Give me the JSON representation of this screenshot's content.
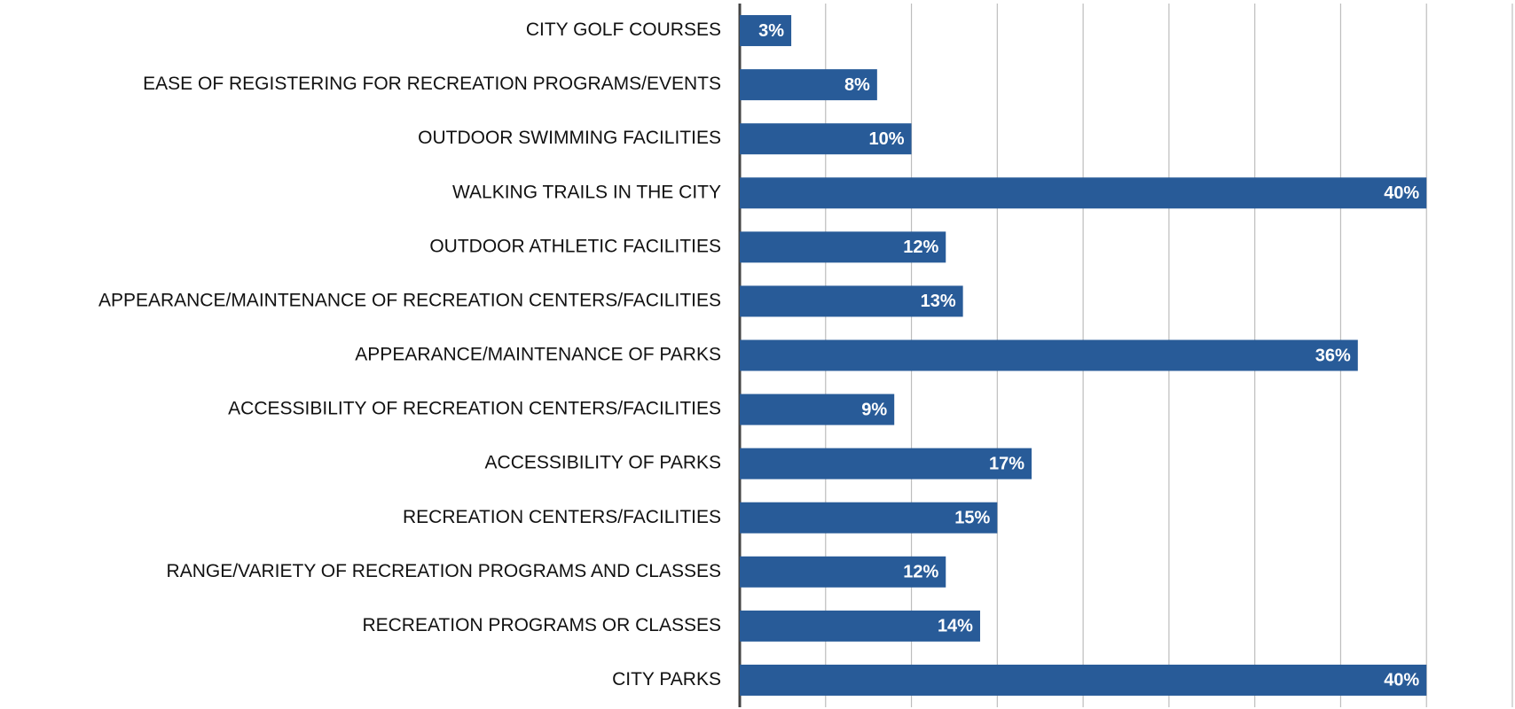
{
  "chart_data": {
    "type": "bar",
    "orientation": "horizontal",
    "categories": [
      "CITY GOLF COURSES",
      "EASE OF REGISTERING FOR RECREATION PROGRAMS/EVENTS",
      "OUTDOOR SWIMMING FACILITIES",
      "WALKING TRAILS IN THE CITY",
      "OUTDOOR ATHLETIC FACILITIES",
      "APPEARANCE/MAINTENANCE OF RECREATION CENTERS/FACILITIES",
      "APPEARANCE/MAINTENANCE OF PARKS",
      "ACCESSIBILITY OF RECREATION CENTERS/FACILITIES",
      "ACCESSIBILITY OF PARKS",
      "RECREATION CENTERS/FACILITIES",
      "RANGE/VARIETY OF RECREATION PROGRAMS AND CLASSES",
      "RECREATION PROGRAMS OR CLASSES",
      "CITY PARKS"
    ],
    "values": [
      3,
      8,
      10,
      40,
      12,
      13,
      36,
      9,
      17,
      15,
      12,
      14,
      40
    ],
    "value_labels": [
      "3%",
      "8%",
      "10%",
      "40%",
      "12%",
      "13%",
      "36%",
      "9%",
      "17%",
      "15%",
      "12%",
      "14%",
      "40%"
    ],
    "color": "#285b98",
    "xlim": [
      0,
      45
    ],
    "xticks": [
      0,
      5,
      10,
      15,
      20,
      25,
      30,
      35,
      40,
      45
    ],
    "grid": true
  }
}
